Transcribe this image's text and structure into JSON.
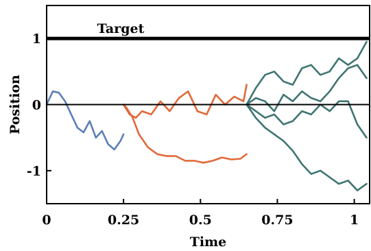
{
  "chart_data": {
    "type": "line",
    "title": "",
    "xlabel": "Time",
    "ylabel": "Position",
    "xlim": [
      0,
      1.05
    ],
    "ylim": [
      -1.5,
      1.5
    ],
    "x_ticks": [
      {
        "value": 0,
        "label": "0"
      },
      {
        "value": 0.25,
        "label": "0.25"
      },
      {
        "value": 0.5,
        "label": "0.5"
      },
      {
        "value": 0.75,
        "label": "0.75"
      },
      {
        "value": 1,
        "label": "1"
      }
    ],
    "y_ticks": [
      {
        "value": 1,
        "label": "1"
      },
      {
        "value": 0,
        "label": "0"
      },
      {
        "value": -1,
        "label": "-1"
      }
    ],
    "reference_lines": [
      {
        "y": 1,
        "label": "Target",
        "color": "#000000",
        "style": "thick"
      },
      {
        "y": 0,
        "label": "",
        "color": "#000000",
        "style": "thin"
      }
    ],
    "grid": false,
    "legend": "none",
    "series": [
      {
        "color": "#5b7fb4",
        "x": [
          0,
          0.02,
          0.04,
          0.06,
          0.08,
          0.1,
          0.12,
          0.14,
          0.16,
          0.18,
          0.2,
          0.22,
          0.24,
          0.25
        ],
        "y": [
          0,
          0.2,
          0.18,
          0.05,
          -0.15,
          -0.35,
          -0.42,
          -0.25,
          -0.5,
          -0.4,
          -0.6,
          -0.68,
          -0.55,
          -0.45
        ]
      },
      {
        "color": "#e0693a",
        "x": [
          0.25,
          0.26,
          0.28,
          0.3,
          0.33,
          0.36,
          0.39,
          0.42,
          0.45,
          0.48,
          0.51,
          0.54,
          0.57,
          0.6,
          0.63,
          0.65
        ],
        "y": [
          0,
          -0.05,
          -0.2,
          -0.45,
          -0.65,
          -0.75,
          -0.78,
          -0.78,
          -0.85,
          -0.85,
          -0.88,
          -0.85,
          -0.8,
          -0.83,
          -0.82,
          -0.75
        ]
      },
      {
        "color": "#e0693a",
        "x": [
          0.25,
          0.27,
          0.29,
          0.31,
          0.34,
          0.37,
          0.4,
          0.43,
          0.46,
          0.49,
          0.52,
          0.55,
          0.58,
          0.61,
          0.64,
          0.65
        ],
        "y": [
          0,
          -0.15,
          -0.2,
          -0.1,
          -0.15,
          0.05,
          -0.1,
          0.1,
          0.2,
          -0.1,
          -0.15,
          0.15,
          0.0,
          0.12,
          0.05,
          0.3
        ]
      },
      {
        "color": "#3e7471",
        "x": [
          0.65,
          0.68,
          0.71,
          0.74,
          0.77,
          0.8,
          0.83,
          0.86,
          0.89,
          0.92,
          0.95,
          0.98,
          1.01,
          1.04
        ],
        "y": [
          0,
          0.25,
          0.45,
          0.5,
          0.35,
          0.3,
          0.55,
          0.6,
          0.45,
          0.5,
          0.7,
          0.6,
          0.7,
          0.95
        ]
      },
      {
        "color": "#3e7471",
        "x": [
          0.65,
          0.68,
          0.71,
          0.74,
          0.77,
          0.8,
          0.83,
          0.86,
          0.89,
          0.92,
          0.95,
          0.98,
          1.01,
          1.04
        ],
        "y": [
          0,
          0.1,
          0.05,
          -0.1,
          0.15,
          0.05,
          0.2,
          0.1,
          0.05,
          0.2,
          0.4,
          0.55,
          0.6,
          0.4
        ]
      },
      {
        "color": "#3e7471",
        "x": [
          0.65,
          0.68,
          0.71,
          0.74,
          0.77,
          0.8,
          0.83,
          0.86,
          0.89,
          0.92,
          0.95,
          0.98,
          1.01,
          1.04
        ],
        "y": [
          0,
          -0.1,
          -0.2,
          -0.15,
          -0.3,
          -0.25,
          -0.1,
          -0.15,
          0.0,
          -0.1,
          0.05,
          0.05,
          -0.3,
          -0.5
        ]
      },
      {
        "color": "#3e7471",
        "x": [
          0.65,
          0.68,
          0.71,
          0.74,
          0.77,
          0.8,
          0.83,
          0.86,
          0.89,
          0.92,
          0.95,
          0.98,
          1.01,
          1.04
        ],
        "y": [
          0,
          -0.2,
          -0.35,
          -0.45,
          -0.55,
          -0.7,
          -0.9,
          -1.05,
          -1.0,
          -1.1,
          -1.2,
          -1.15,
          -1.3,
          -1.2
        ]
      }
    ]
  }
}
